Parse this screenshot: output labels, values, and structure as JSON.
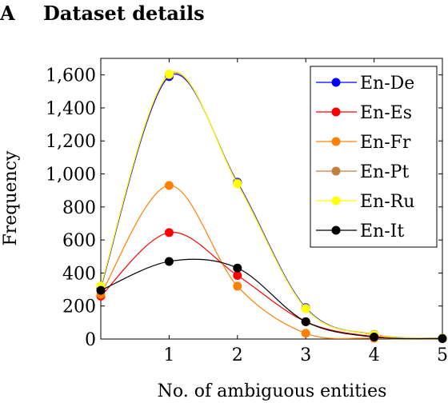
{
  "section": {
    "letter": "A",
    "title": "Dataset details"
  },
  "chart_data": {
    "type": "line",
    "x": [
      0,
      1,
      2,
      3,
      4,
      5
    ],
    "xticks": [
      "1",
      "2",
      "3",
      "4",
      "5"
    ],
    "yticks": [
      "0",
      "200",
      "400",
      "600",
      "800",
      "1,000",
      "1,200",
      "1,400",
      "1,600"
    ],
    "xlabel": "No. of ambiguous entities",
    "ylabel": "Frequency",
    "xlim": [
      0,
      5
    ],
    "ylim": [
      0,
      1700
    ],
    "grid": false,
    "legend_position": "top-right",
    "series": [
      {
        "name": "En-De",
        "color": "#0000ff",
        "values": [
          310,
          1590,
          950,
          190,
          25,
          5
        ]
      },
      {
        "name": "En-Es",
        "color": "#ff0000",
        "values": [
          260,
          645,
          385,
          105,
          15,
          5
        ]
      },
      {
        "name": "En-Fr",
        "color": "#ff8000",
        "values": [
          270,
          930,
          320,
          35,
          5,
          2
        ]
      },
      {
        "name": "En-Pt",
        "color": "#bf8040",
        "values": [
          320,
          1600,
          945,
          185,
          28,
          5
        ]
      },
      {
        "name": "En-Ru",
        "color": "#ffff00",
        "values": [
          320,
          1605,
          940,
          185,
          25,
          5
        ]
      },
      {
        "name": "En-It",
        "color": "#000000",
        "values": [
          295,
          470,
          430,
          105,
          12,
          3
        ]
      }
    ]
  }
}
